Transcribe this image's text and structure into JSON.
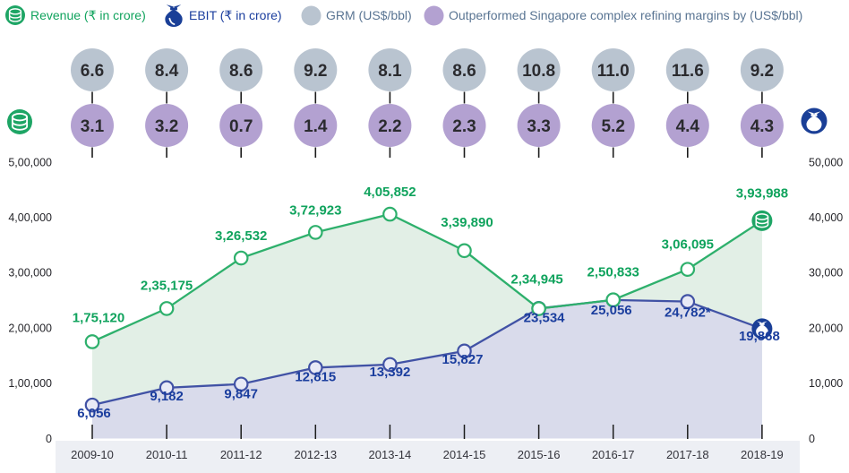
{
  "legend": {
    "revenue_label": "Revenue (₹ in crore)",
    "ebit_label": "EBIT (₹ in crore)",
    "grm_label": "GRM (US$/bbl)",
    "outperform_label": "Outperformed Singapore complex refining margins by (US$/bbl)"
  },
  "colors": {
    "revenue_line": "#2eb06c",
    "revenue_fill": "#e2efe6",
    "revenue_text": "#10a35d",
    "revenue_marker_fill": "#ffffff",
    "ebit_line": "#4152a5",
    "ebit_fill": "#d9dbeb",
    "ebit_text": "#1b3e9e",
    "ebit_marker_fill": "#e8eaf6",
    "ebit_bag": "#1a3f97",
    "coin_green": "#1ea565",
    "grm_bubble": "#b9c4d0",
    "outperform_bubble": "#b3a1d1",
    "bubble_text": "#2b2b2f",
    "axis_text": "#26262b",
    "category_text": "#33333b",
    "band": "#edeff4",
    "tick_line": "#1c1c1c"
  },
  "chart_data": {
    "type": "line",
    "grid": "off",
    "legend_position": "top",
    "categories": [
      "2009-10",
      "2010-11",
      "2011-12",
      "2012-13",
      "2013-14",
      "2014-15",
      "2015-16",
      "2016-17",
      "2017-18",
      "2018-19"
    ],
    "series": [
      {
        "name": "Revenue (₹ in crore)",
        "kind": "area-line",
        "axis": "left",
        "values": [
          175120,
          235175,
          326532,
          372923,
          405852,
          339890,
          234945,
          250833,
          306095,
          393988
        ],
        "labels": [
          "1,75,120",
          "2,35,175",
          "3,26,532",
          "3,72,923",
          "4,05,852",
          "3,39,890",
          "2,34,945",
          "2,50,833",
          "3,06,095",
          "3,93,988"
        ]
      },
      {
        "name": "EBIT (₹ in crore)",
        "kind": "area-line",
        "axis": "right",
        "values": [
          6056,
          9182,
          9847,
          12815,
          13392,
          15827,
          23534,
          25056,
          24782,
          19868
        ],
        "labels": [
          "6,056",
          "9,182",
          "9,847",
          "12,815",
          "13,392",
          "15,827",
          "23,534",
          "25,056",
          "24,782*",
          "19,868"
        ]
      },
      {
        "name": "GRM (US$/bbl)",
        "kind": "bubble-row",
        "values": [
          6.6,
          8.4,
          8.6,
          9.2,
          8.1,
          8.6,
          10.8,
          11.0,
          11.6,
          9.2
        ],
        "display": [
          "6.6",
          "8.4",
          "8.6",
          "9.2",
          "8.1",
          "8.6",
          "10.8",
          "11.0",
          "11.6",
          "9.2"
        ]
      },
      {
        "name": "Outperformed Singapore complex refining margins by (US$/bbl)",
        "kind": "bubble-row",
        "values": [
          3.1,
          3.2,
          0.7,
          1.4,
          2.2,
          2.3,
          3.3,
          5.2,
          4.4,
          4.3
        ],
        "display": [
          "3.1",
          "3.2",
          "0.7",
          "1.4",
          "2.2",
          "2.3",
          "3.3",
          "5.2",
          "4.4",
          "4.3"
        ]
      }
    ],
    "left_axis": {
      "max": 500000,
      "ticks": [
        "5,00,000",
        "4,00,000",
        "3,00,000",
        "2,00,000",
        "1,00,000",
        "0"
      ]
    },
    "right_axis": {
      "max": 50000,
      "ticks": [
        "50,000",
        "40,000",
        "30,000",
        "20,000",
        "10,000",
        "0"
      ]
    },
    "label_offsets": {
      "revenue": [
        [
          7,
          -22
        ],
        [
          0,
          -21
        ],
        [
          0,
          -20
        ],
        [
          0,
          -20
        ],
        [
          0,
          -20
        ],
        [
          3,
          -27
        ],
        [
          -2,
          -28
        ],
        [
          0,
          -26
        ],
        [
          0,
          -23
        ],
        [
          0,
          -26
        ]
      ],
      "ebit": [
        [
          2,
          14
        ],
        [
          0,
          14
        ],
        [
          0,
          16
        ],
        [
          0,
          15
        ],
        [
          0,
          13
        ],
        [
          -2,
          14
        ],
        [
          6,
          15
        ],
        [
          -2,
          16
        ],
        [
          0,
          17
        ],
        [
          -3,
          13
        ]
      ]
    }
  }
}
